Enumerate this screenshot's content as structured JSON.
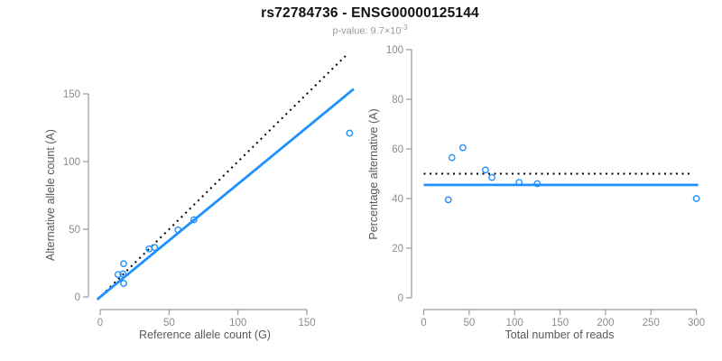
{
  "figure": {
    "title": "rs72784736 - ENSG00000125144",
    "subtitle_prefix": "p-value: 9.7×10",
    "subtitle_exponent": "-3"
  },
  "colors": {
    "accent_blue": "#1E90FF",
    "dotted_black": "#000000",
    "axis_gray": "#9a9a9a",
    "tick_text_gray": "#8c8c8c",
    "label_gray": "#595959",
    "title_black": "#111111"
  },
  "chart_data": [
    {
      "type": "scatter",
      "panel": "left",
      "xlabel": "Reference allele count (G)",
      "ylabel": "Alternative allele count (A)",
      "xticks": [
        0,
        50,
        100,
        150
      ],
      "yticks": [
        0,
        50,
        100,
        150
      ],
      "xlim": [
        0,
        186
      ],
      "ylim": [
        0,
        185
      ],
      "legend": "none",
      "grid": false,
      "point_style": "open-circle",
      "points": [
        [
          13,
          16.5
        ],
        [
          16.5,
          17
        ],
        [
          17,
          24.5
        ],
        [
          17,
          10
        ],
        [
          35.5,
          35.5
        ],
        [
          39.5,
          36.5
        ],
        [
          56.5,
          49.5
        ],
        [
          68,
          57
        ],
        [
          181,
          121
        ]
      ],
      "lines": [
        {
          "name": "identity-line",
          "style": "dotted",
          "color": "#000000",
          "from": [
            -2,
            -2
          ],
          "to": [
            178,
            178
          ]
        },
        {
          "name": "regression-line",
          "style": "solid",
          "color": "#1E90FF",
          "from": [
            -2,
            -1.7
          ],
          "to": [
            184,
            153.6
          ]
        }
      ]
    },
    {
      "type": "scatter",
      "panel": "right",
      "xlabel": "Total number of reads",
      "ylabel": "Percentage alternative (A)",
      "xticks": [
        0,
        50,
        100,
        150,
        200,
        250,
        300
      ],
      "yticks": [
        0,
        20,
        40,
        60,
        80,
        100
      ],
      "xlim": [
        0,
        305
      ],
      "ylim": [
        0,
        100
      ],
      "legend": "none",
      "grid": false,
      "point_style": "open-circle",
      "points": [
        [
          27,
          39.5
        ],
        [
          31,
          56.5
        ],
        [
          43,
          60.5
        ],
        [
          68,
          51.5
        ],
        [
          75,
          48.5
        ],
        [
          105,
          46.5
        ],
        [
          125,
          46
        ],
        [
          300,
          40
        ]
      ],
      "lines": [
        {
          "name": "expected-50pct-line",
          "style": "dotted",
          "color": "#000000",
          "from": [
            0,
            50
          ],
          "to": [
            297,
            50
          ]
        },
        {
          "name": "observed-fraction-line",
          "style": "solid",
          "color": "#1E90FF",
          "from": [
            0,
            45.5
          ],
          "to": [
            302,
            45.5
          ]
        }
      ]
    }
  ]
}
